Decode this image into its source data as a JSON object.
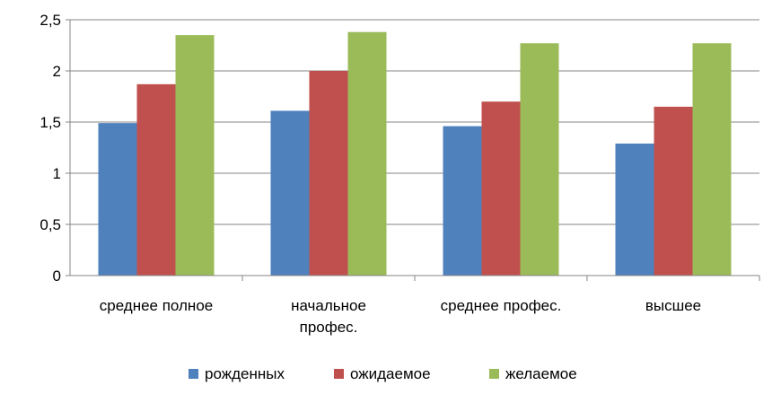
{
  "chart_data": {
    "type": "bar",
    "categories": [
      [
        "среднее полное"
      ],
      [
        "начальное",
        "профес."
      ],
      [
        "среднее профес."
      ],
      [
        "высшее"
      ]
    ],
    "series": [
      {
        "name": "рожденных",
        "color": "#4F81BD",
        "values": [
          1.49,
          1.61,
          1.46,
          1.29
        ]
      },
      {
        "name": "ожидаемое",
        "color": "#C0504D",
        "values": [
          1.87,
          2.0,
          1.7,
          1.65
        ]
      },
      {
        "name": "желаемое",
        "color": "#9BBB59",
        "values": [
          2.35,
          2.38,
          2.27,
          2.27
        ]
      }
    ],
    "ylim": [
      0,
      2.5
    ],
    "yticks": [
      "0",
      "0,5",
      "1",
      "1,5",
      "2",
      "2,5"
    ],
    "grid": true,
    "legend_position": "bottom"
  }
}
